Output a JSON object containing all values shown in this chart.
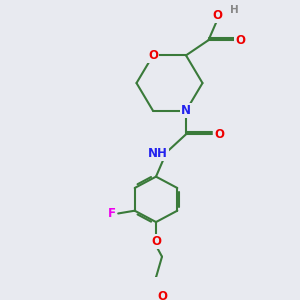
{
  "bg_color": "#e8eaf0",
  "bond_color": "#3a7a3a",
  "bond_width": 1.5,
  "atom_colors": {
    "O": "#ee0000",
    "N": "#2222ee",
    "F": "#ee00ee",
    "H": "#888888",
    "C": "#3a7a3a"
  },
  "font_size": 8.5,
  "figsize": [
    3.0,
    3.0
  ],
  "dpi": 100
}
